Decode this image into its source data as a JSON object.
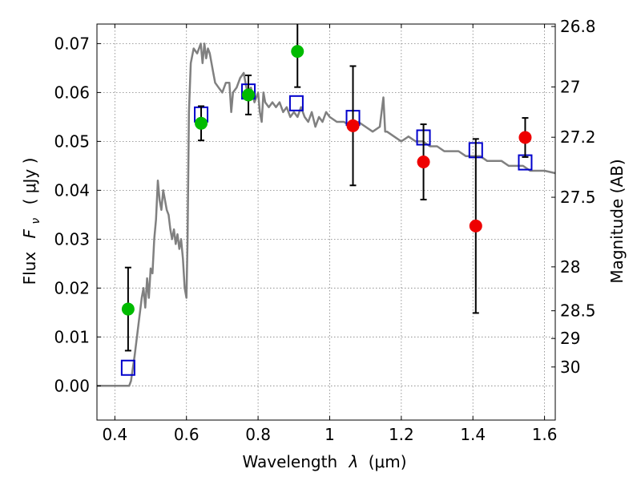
{
  "chart_data": {
    "type": "scatter",
    "xlabel_text": "Wavelength",
    "xlabel_symbol": "λ",
    "xlabel_unit": "(μm)",
    "ylabel_text": "Flux",
    "ylabel_symbol": "F",
    "ylabel_subscript": "ν",
    "ylabel_unit": "( μJy )",
    "y2label": "Magnitude (AB)",
    "xlim": [
      0.35,
      1.63
    ],
    "ylim": [
      -0.007,
      0.074
    ],
    "grid": true,
    "xticks": [
      {
        "value": 0.4,
        "label": "0.4"
      },
      {
        "value": 0.6,
        "label": "0.6"
      },
      {
        "value": 0.8,
        "label": "0.8"
      },
      {
        "value": 1.0,
        "label": "1"
      },
      {
        "value": 1.2,
        "label": "1.2"
      },
      {
        "value": 1.4,
        "label": "1.4"
      },
      {
        "value": 1.6,
        "label": "1.6"
      }
    ],
    "yticks": [
      {
        "value": 0.0,
        "label": "0.00"
      },
      {
        "value": 0.01,
        "label": "0.01"
      },
      {
        "value": 0.02,
        "label": "0.02"
      },
      {
        "value": 0.03,
        "label": "0.03"
      },
      {
        "value": 0.04,
        "label": "0.04"
      },
      {
        "value": 0.05,
        "label": "0.05"
      },
      {
        "value": 0.06,
        "label": "0.06"
      },
      {
        "value": 0.07,
        "label": "0.07"
      }
    ],
    "y2ticks": [
      {
        "value": 26.8,
        "label": "26.8"
      },
      {
        "value": 27.0,
        "label": "27"
      },
      {
        "value": 27.2,
        "label": "27.2"
      },
      {
        "value": 27.5,
        "label": "27.5"
      },
      {
        "value": 28.0,
        "label": "28"
      },
      {
        "value": 28.5,
        "label": "28.5"
      },
      {
        "value": 29.0,
        "label": "29"
      },
      {
        "value": 30.0,
        "label": "30"
      }
    ],
    "series": [
      {
        "kind": "line",
        "color": "#808080",
        "x": [
          0.35,
          0.44,
          0.445,
          0.455,
          0.465,
          0.475,
          0.48,
          0.485,
          0.49,
          0.495,
          0.5,
          0.505,
          0.51,
          0.515,
          0.52,
          0.525,
          0.53,
          0.535,
          0.54,
          0.545,
          0.55,
          0.555,
          0.56,
          0.565,
          0.57,
          0.575,
          0.58,
          0.585,
          0.59,
          0.595,
          0.6,
          0.603,
          0.607,
          0.612,
          0.62,
          0.63,
          0.64,
          0.645,
          0.65,
          0.655,
          0.66,
          0.665,
          0.67,
          0.675,
          0.68,
          0.69,
          0.7,
          0.71,
          0.72,
          0.725,
          0.73,
          0.74,
          0.75,
          0.76,
          0.77,
          0.78,
          0.79,
          0.8,
          0.805,
          0.81,
          0.815,
          0.82,
          0.83,
          0.84,
          0.85,
          0.86,
          0.87,
          0.88,
          0.89,
          0.9,
          0.91,
          0.92,
          0.93,
          0.94,
          0.95,
          0.96,
          0.97,
          0.98,
          0.99,
          1.0,
          1.02,
          1.04,
          1.06,
          1.08,
          1.1,
          1.12,
          1.14,
          1.15,
          1.155,
          1.16,
          1.18,
          1.2,
          1.22,
          1.24,
          1.26,
          1.28,
          1.3,
          1.32,
          1.34,
          1.36,
          1.38,
          1.4,
          1.42,
          1.44,
          1.46,
          1.48,
          1.5,
          1.52,
          1.54,
          1.56,
          1.58,
          1.6,
          1.63
        ],
        "y": [
          0.0,
          0.0,
          0.001,
          0.006,
          0.012,
          0.018,
          0.02,
          0.016,
          0.022,
          0.018,
          0.024,
          0.023,
          0.03,
          0.034,
          0.042,
          0.038,
          0.036,
          0.04,
          0.038,
          0.036,
          0.035,
          0.032,
          0.03,
          0.032,
          0.029,
          0.031,
          0.028,
          0.03,
          0.026,
          0.02,
          0.018,
          0.03,
          0.056,
          0.066,
          0.069,
          0.068,
          0.07,
          0.066,
          0.07,
          0.067,
          0.069,
          0.068,
          0.066,
          0.064,
          0.062,
          0.061,
          0.06,
          0.062,
          0.062,
          0.056,
          0.06,
          0.061,
          0.063,
          0.064,
          0.06,
          0.061,
          0.058,
          0.06,
          0.056,
          0.054,
          0.06,
          0.058,
          0.057,
          0.058,
          0.057,
          0.058,
          0.056,
          0.057,
          0.055,
          0.056,
          0.055,
          0.057,
          0.055,
          0.054,
          0.056,
          0.053,
          0.055,
          0.054,
          0.056,
          0.055,
          0.054,
          0.054,
          0.053,
          0.054,
          0.053,
          0.052,
          0.053,
          0.059,
          0.052,
          0.052,
          0.051,
          0.05,
          0.051,
          0.05,
          0.05,
          0.049,
          0.049,
          0.048,
          0.048,
          0.048,
          0.047,
          0.047,
          0.047,
          0.046,
          0.046,
          0.046,
          0.045,
          0.045,
          0.045,
          0.044,
          0.044,
          0.044,
          0.0435
        ]
      },
      {
        "kind": "squares",
        "color": "#0000cc",
        "x": [
          0.437,
          0.641,
          0.773,
          0.907,
          1.065,
          1.262,
          1.408,
          1.546
        ],
        "y": [
          0.0037,
          0.0555,
          0.0602,
          0.0578,
          0.0548,
          0.0508,
          0.0482,
          0.0457
        ]
      },
      {
        "kind": "points",
        "color": "#00bb00",
        "x": [
          0.437,
          0.641,
          0.773,
          0.91
        ],
        "y": [
          0.0157,
          0.0537,
          0.0595,
          0.0684
        ],
        "err": [
          0.0085,
          0.0035,
          0.004,
          0.0073
        ]
      },
      {
        "kind": "points",
        "color": "#ee0000",
        "x": [
          1.065,
          1.262,
          1.408,
          1.546
        ],
        "y": [
          0.0532,
          0.0458,
          0.0327,
          0.0508
        ],
        "err": [
          0.0122,
          0.0077,
          0.0178,
          0.004
        ]
      }
    ]
  }
}
